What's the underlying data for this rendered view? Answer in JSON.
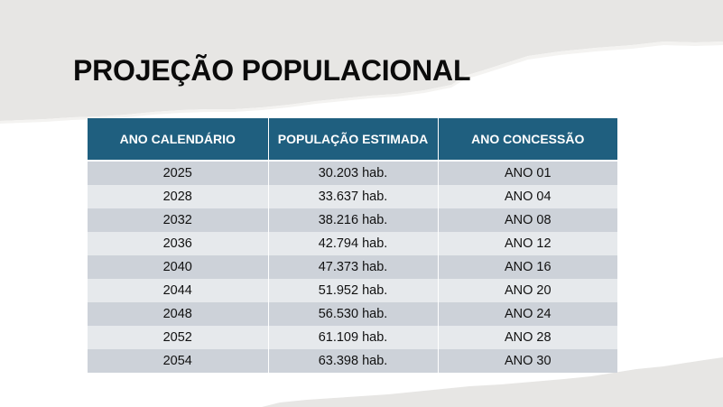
{
  "slide": {
    "title": "PROJEÇÃO POPULACIONAL"
  },
  "table": {
    "headers": [
      "ANO CALENDÁRIO",
      "POPULAÇÃO ESTIMADA",
      "ANO CONCESSÃO"
    ],
    "rows": [
      [
        "2025",
        "30.203 hab.",
        "ANO 01"
      ],
      [
        "2028",
        "33.637 hab.",
        "ANO 04"
      ],
      [
        "2032",
        "38.216 hab.",
        "ANO 08"
      ],
      [
        "2036",
        "42.794 hab.",
        "ANO 12"
      ],
      [
        "2040",
        "47.373 hab.",
        "ANO 16"
      ],
      [
        "2044",
        "51.952 hab.",
        "ANO 20"
      ],
      [
        "2048",
        "56.530 hab.",
        "ANO 24"
      ],
      [
        "2052",
        "61.109 hab.",
        "ANO 28"
      ],
      [
        "2054",
        "63.398 hab.",
        "ANO 30"
      ]
    ]
  },
  "colors": {
    "header_bg": "#1f5f7f",
    "header_text": "#ffffff",
    "row_dark": "#cdd2d9",
    "row_light": "#e6e9ec",
    "paper_gray": "#e7e6e4"
  }
}
